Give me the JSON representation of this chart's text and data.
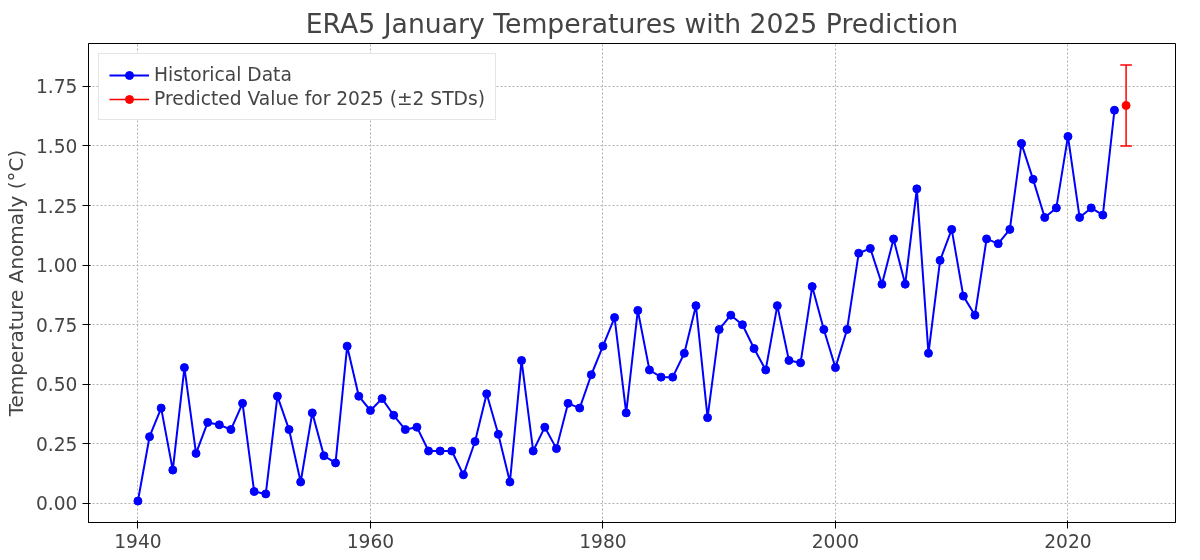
{
  "chart_data": {
    "type": "line",
    "title": "ERA5 January Temperatures with 2025 Prediction",
    "ylabel": "Temperature Anomaly (°C)",
    "xlim": [
      1935.75,
      2029.25
    ],
    "xticks": [
      1940,
      1960,
      1980,
      2000,
      2020
    ],
    "ylim": [
      -0.08,
      1.93
    ],
    "yticks": [
      {
        "value": 0,
        "label": "0.00"
      },
      {
        "value": 0.25,
        "label": "0.25"
      },
      {
        "value": 0.5,
        "label": "0.50"
      },
      {
        "value": 0.75,
        "label": "0.75"
      },
      {
        "value": 1,
        "label": "1.00"
      },
      {
        "value": 1.25,
        "label": "1.25"
      },
      {
        "value": 1.5,
        "label": "1.50"
      },
      {
        "value": 1.75,
        "label": "1.75"
      }
    ],
    "grid": true,
    "legend": "top left",
    "marker": "circle",
    "line_style": "solid",
    "series": [
      {
        "name": "Historical Data",
        "color": "#0000ff",
        "x": [
          1940,
          1941,
          1942,
          1943,
          1944,
          1945,
          1946,
          1947,
          1948,
          1949,
          1950,
          1951,
          1952,
          1953,
          1954,
          1955,
          1956,
          1957,
          1958,
          1959,
          1960,
          1961,
          1962,
          1963,
          1964,
          1965,
          1966,
          1967,
          1968,
          1969,
          1970,
          1971,
          1972,
          1973,
          1974,
          1975,
          1976,
          1977,
          1978,
          1979,
          1980,
          1981,
          1982,
          1983,
          1984,
          1985,
          1986,
          1987,
          1988,
          1989,
          1990,
          1991,
          1992,
          1993,
          1994,
          1995,
          1996,
          1997,
          1998,
          1999,
          2000,
          2001,
          2002,
          2003,
          2004,
          2005,
          2006,
          2007,
          2008,
          2009,
          2010,
          2011,
          2012,
          2013,
          2014,
          2015,
          2016,
          2017,
          2018,
          2019,
          2020,
          2021,
          2022,
          2023,
          2024
        ],
        "values": [
          0.01,
          0.28,
          0.4,
          0.14,
          0.57,
          0.21,
          0.34,
          0.33,
          0.31,
          0.42,
          0.05,
          0.04,
          0.45,
          0.31,
          0.09,
          0.38,
          0.2,
          0.17,
          0.66,
          0.45,
          0.39,
          0.44,
          0.37,
          0.31,
          0.32,
          0.22,
          0.22,
          0.22,
          0.12,
          0.26,
          0.46,
          0.29,
          0.09,
          0.6,
          0.22,
          0.32,
          0.23,
          0.42,
          0.4,
          0.54,
          0.66,
          0.78,
          0.38,
          0.81,
          0.56,
          0.53,
          0.53,
          0.63,
          0.83,
          0.36,
          0.73,
          0.79,
          0.75,
          0.65,
          0.56,
          0.83,
          0.6,
          0.59,
          0.91,
          0.73,
          0.57,
          0.73,
          1.05,
          1.07,
          0.92,
          1.11,
          0.92,
          1.32,
          0.63,
          1.02,
          1.15,
          0.87,
          0.79,
          1.11,
          1.09,
          1.15,
          1.51,
          1.36,
          1.2,
          1.24,
          1.54,
          1.2,
          1.24,
          1.21,
          1.65
        ]
      },
      {
        "name": "Predicted Value for 2025 (±2 STDs)",
        "type": "scatter",
        "color": "#ff0000",
        "x": [
          2025
        ],
        "values": [
          1.67
        ],
        "errors": [
          [
            1.5,
            1.84
          ]
        ]
      }
    ]
  }
}
